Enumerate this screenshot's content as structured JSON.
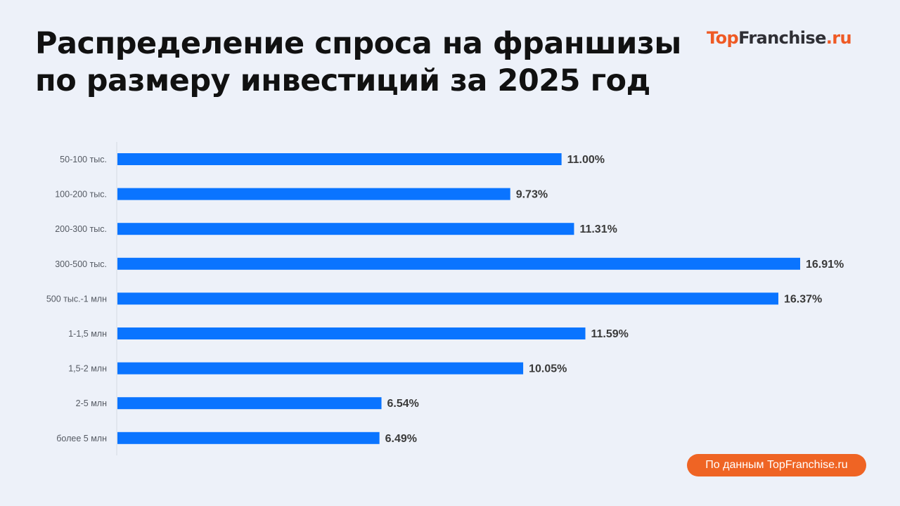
{
  "header": {
    "title_line1": "Распределение спроса на франшизы",
    "title_line2": "по размеру инвестиций за 2025 год"
  },
  "logo": {
    "part1": "Top",
    "part2": "Franchise",
    "part3": ".ru"
  },
  "footer": {
    "source": "По данным TopFranchise.ru"
  },
  "colors": {
    "bar": "#0a74ff",
    "accent": "#ef6424",
    "background": "#edf1f9"
  },
  "chart_data": {
    "type": "bar",
    "orientation": "horizontal",
    "title": "Распределение спроса на франшизы по размеру инвестиций за 2025 год",
    "categories": [
      "50-100 тыс.",
      "100-200 тыс.",
      "200-300 тыс.",
      "300-500 тыс.",
      "500 тыс.-1 млн",
      "1-1,5 млн",
      "1,5-2 млн",
      "2-5 млн",
      "более 5 млн"
    ],
    "values": [
      11.0,
      9.73,
      11.31,
      16.91,
      16.37,
      11.59,
      10.05,
      6.54,
      6.49
    ],
    "value_labels": [
      "11.00%",
      "9.73%",
      "11.31%",
      "16.91%",
      "16.37%",
      "11.59%",
      "10.05%",
      "6.54%",
      "6.49%"
    ],
    "xlabel": "",
    "ylabel": "",
    "grid": false,
    "legend": "none"
  }
}
